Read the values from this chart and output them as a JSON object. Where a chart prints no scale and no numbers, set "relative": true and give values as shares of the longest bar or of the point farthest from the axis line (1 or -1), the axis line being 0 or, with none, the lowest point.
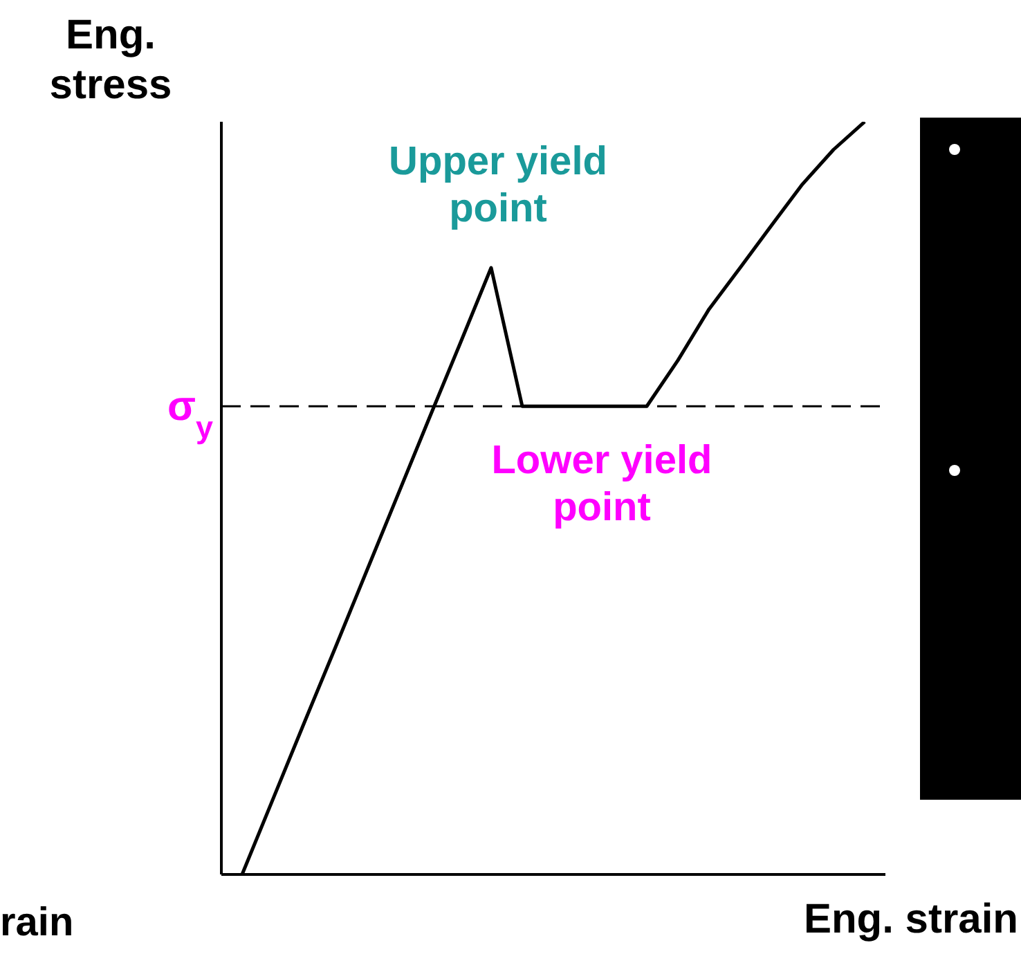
{
  "chart_data": {
    "type": "line",
    "relative": true,
    "ylabel": "Eng. stress",
    "xlabel": "Eng. strain",
    "categories": [
      null,
      null,
      null,
      null,
      null,
      null,
      null,
      null,
      null,
      null,
      null,
      null,
      null,
      null,
      null,
      null,
      null,
      null,
      null,
      null,
      null
    ],
    "series": [
      {
        "color": "#000000",
        "values": [
          0,
          0.101,
          0.202,
          0.302,
          0.403,
          0.504,
          0.605,
          0.705,
          0.806,
          0.622,
          0.622,
          0.622,
          0.622,
          0.622,
          0.683,
          0.751,
          0.806,
          0.862,
          0.917,
          0.963,
          1.0
        ]
      }
    ],
    "ref_lines": [
      {
        "axis": "y",
        "value": 0.622,
        "label": "σ$_{y}$",
        "color": "#000000",
        "line_style": "dashed"
      }
    ],
    "annotations": [
      "Upper yield point",
      "Lower yield point",
      "rain"
    ]
  }
}
